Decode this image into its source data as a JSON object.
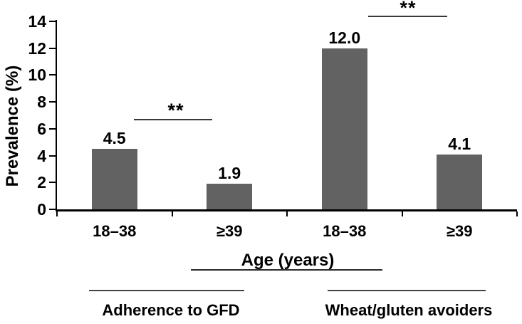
{
  "chart_data": {
    "type": "bar",
    "title": "",
    "ylabel": "Prevalence (%)",
    "xlabel": "Age (years)",
    "ylim": [
      0,
      14
    ],
    "yticks": [
      0,
      2,
      4,
      6,
      8,
      10,
      12,
      14
    ],
    "ytick_labels": [
      "0",
      "2",
      "4",
      "6",
      "8",
      "10",
      "12",
      "14"
    ],
    "grid": false,
    "legend": "none",
    "bar_color": "#626262",
    "categories": [
      "18–38",
      "≥39",
      "18–38",
      "≥39"
    ],
    "values": [
      4.5,
      1.9,
      12.0,
      4.1
    ],
    "value_labels": [
      "4.5",
      "1.9",
      "12.0",
      "4.1"
    ],
    "groups": [
      {
        "label": "Adherence to GFD",
        "bars": [
          0,
          1
        ],
        "significance": "**"
      },
      {
        "label": "Wheat/gluten avoiders",
        "bars": [
          2,
          3
        ],
        "significance": "**"
      }
    ]
  }
}
